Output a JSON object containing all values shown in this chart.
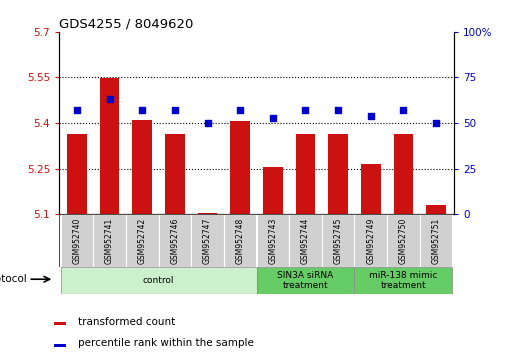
{
  "title": "GDS4255 / 8049620",
  "samples": [
    "GSM952740",
    "GSM952741",
    "GSM952742",
    "GSM952746",
    "GSM952747",
    "GSM952748",
    "GSM952743",
    "GSM952744",
    "GSM952745",
    "GSM952749",
    "GSM952750",
    "GSM952751"
  ],
  "bar_values": [
    5.365,
    5.548,
    5.41,
    5.365,
    5.105,
    5.405,
    5.255,
    5.365,
    5.365,
    5.265,
    5.365,
    5.13
  ],
  "dot_values": [
    57,
    63,
    57,
    57,
    50,
    57,
    53,
    57,
    57,
    54,
    57,
    50
  ],
  "bar_color": "#cc1111",
  "dot_color": "#0000cc",
  "ylim_left": [
    5.1,
    5.7
  ],
  "ylim_right": [
    0,
    100
  ],
  "yticks_left": [
    5.1,
    5.25,
    5.4,
    5.55,
    5.7
  ],
  "yticks_right": [
    0,
    25,
    50,
    75,
    100
  ],
  "ytick_labels_left": [
    "5.1",
    "5.25",
    "5.4",
    "5.55",
    "5.7"
  ],
  "ytick_labels_right": [
    "0",
    "25",
    "50",
    "75",
    "100%"
  ],
  "gridlines": [
    5.25,
    5.4,
    5.55
  ],
  "group_spans": [
    {
      "start_i": 0,
      "end_i": 5,
      "label": "control",
      "color": "#ccf0cc"
    },
    {
      "start_i": 6,
      "end_i": 8,
      "label": "SIN3A siRNA\ntreatment",
      "color": "#66cc66"
    },
    {
      "start_i": 9,
      "end_i": 11,
      "label": "miR-138 mimic\ntreatment",
      "color": "#66cc66"
    }
  ],
  "protocol_label": "protocol",
  "legend_items": [
    {
      "label": "transformed count",
      "color": "#cc1111"
    },
    {
      "label": "percentile rank within the sample",
      "color": "#0000cc"
    }
  ],
  "bar_width": 0.6,
  "xlim": [
    -0.55,
    11.55
  ]
}
